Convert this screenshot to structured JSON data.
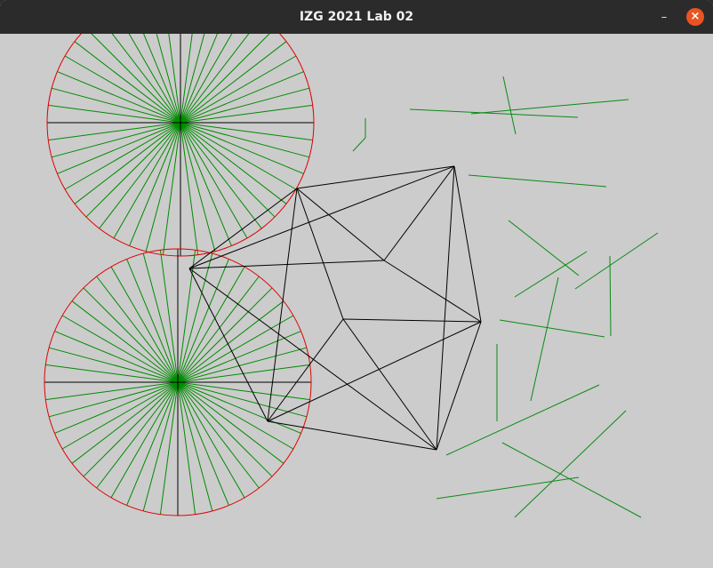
{
  "window": {
    "title": "IZG 2021 Lab 02",
    "minimize_glyph": "–",
    "close_glyph": "×"
  },
  "colors": {
    "canvas_bg": "#cccccc",
    "circle": "#e00000",
    "spokes": "#008a00",
    "axes": "#000000",
    "wireframe": "#000000",
    "random_lines": "#0a8a14",
    "close_button": "#e95420"
  }
}
